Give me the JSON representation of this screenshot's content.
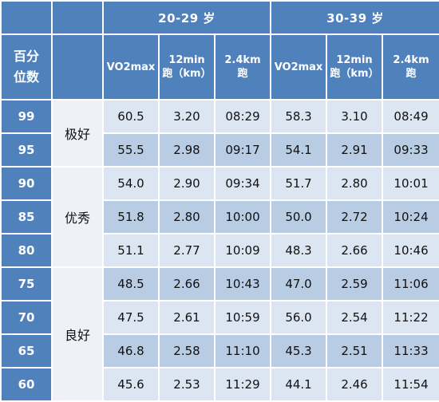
{
  "header": {
    "corner_left": "",
    "corner_right": "",
    "groups": [
      "20-29 岁",
      "30-39 岁"
    ],
    "percentile_label_line1": "百分",
    "percentile_label_line2": "位数",
    "level_label": "",
    "columns": [
      {
        "line1": "VO2max",
        "line2": ""
      },
      {
        "line1": "12min",
        "line2": "跑（km）"
      },
      {
        "line1": "2.4km",
        "line2": "跑"
      },
      {
        "line1": "VO2max",
        "line2": ""
      },
      {
        "line1": "12min",
        "line2": "跑（km）"
      },
      {
        "line1": "2.4km",
        "line2": "跑"
      }
    ]
  },
  "levels": [
    "极好",
    "优秀",
    "良好"
  ],
  "rows": [
    {
      "pct": "99",
      "cells": [
        "60.5",
        "3.20",
        "08:29",
        "58.3",
        "3.10",
        "08:49"
      ]
    },
    {
      "pct": "95",
      "cells": [
        "55.5",
        "2.98",
        "09:17",
        "54.1",
        "2.91",
        "09:33"
      ]
    },
    {
      "pct": "90",
      "cells": [
        "54.0",
        "2.90",
        "09:34",
        "51.7",
        "2.80",
        "10:01"
      ]
    },
    {
      "pct": "85",
      "cells": [
        "51.8",
        "2.80",
        "10:00",
        "50.0",
        "2.72",
        "10:24"
      ]
    },
    {
      "pct": "80",
      "cells": [
        "51.1",
        "2.77",
        "10:09",
        "48.3",
        "2.66",
        "10:46"
      ]
    },
    {
      "pct": "75",
      "cells": [
        "48.5",
        "2.66",
        "10:43",
        "47.0",
        "2.59",
        "11:06"
      ]
    },
    {
      "pct": "70",
      "cells": [
        "47.5",
        "2.61",
        "10:59",
        "56.0",
        "2.54",
        "11:22"
      ]
    },
    {
      "pct": "65",
      "cells": [
        "46.8",
        "2.58",
        "11:10",
        "45.3",
        "2.51",
        "11:33"
      ]
    },
    {
      "pct": "60",
      "cells": [
        "45.6",
        "2.53",
        "11:29",
        "44.1",
        "2.46",
        "11:54"
      ]
    }
  ]
}
